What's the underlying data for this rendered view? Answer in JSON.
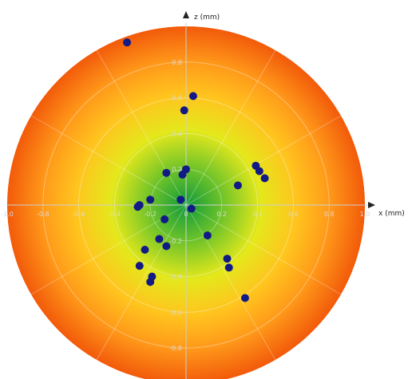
{
  "chart_data": {
    "type": "scatter",
    "xlabel": "x (mm)",
    "ylabel": "z (mm)",
    "xlim": [
      -1.0,
      1.0
    ],
    "ylim": [
      -1.0,
      1.0
    ],
    "x_ticks": [
      "-1.0",
      "-0.8",
      "-0.6",
      "-0.4",
      "-0.2",
      "0",
      "0.2",
      "0.4",
      "0.6",
      "0.8",
      "1.0"
    ],
    "y_ticks_upper": [
      "0.2",
      "0.4",
      "0.6",
      "0.8"
    ],
    "y_ticks_lower": [
      "-0.2",
      "-0.4",
      "-0.6",
      "-0.8"
    ],
    "grid": true,
    "background": "radial gradient, green at center to yellow, orange and red at the rim",
    "colors": {
      "point": "#121a86",
      "center": "#0f9a3a",
      "mid": "#e4e81c",
      "outer": "#ff9a1a",
      "rim": "#f25a0a"
    },
    "points": [
      {
        "x": -0.33,
        "z": 0.91
      },
      {
        "x": 0.04,
        "z": 0.61
      },
      {
        "x": -0.01,
        "z": 0.53
      },
      {
        "x": 0.0,
        "z": 0.2
      },
      {
        "x": -0.11,
        "z": 0.18
      },
      {
        "x": -0.02,
        "z": 0.17
      },
      {
        "x": 0.39,
        "z": 0.22
      },
      {
        "x": 0.41,
        "z": 0.19
      },
      {
        "x": 0.44,
        "z": 0.15
      },
      {
        "x": 0.29,
        "z": 0.11
      },
      {
        "x": -0.2,
        "z": 0.03
      },
      {
        "x": -0.26,
        "z": 0.0
      },
      {
        "x": -0.27,
        "z": -0.01
      },
      {
        "x": -0.03,
        "z": 0.03
      },
      {
        "x": 0.03,
        "z": -0.02
      },
      {
        "x": -0.12,
        "z": -0.08
      },
      {
        "x": -0.15,
        "z": -0.19
      },
      {
        "x": -0.11,
        "z": -0.23
      },
      {
        "x": -0.23,
        "z": -0.25
      },
      {
        "x": 0.12,
        "z": -0.17
      },
      {
        "x": -0.26,
        "z": -0.34
      },
      {
        "x": -0.19,
        "z": -0.4
      },
      {
        "x": -0.2,
        "z": -0.43
      },
      {
        "x": 0.23,
        "z": -0.3
      },
      {
        "x": 0.24,
        "z": -0.35
      },
      {
        "x": 0.33,
        "z": -0.52
      }
    ]
  }
}
